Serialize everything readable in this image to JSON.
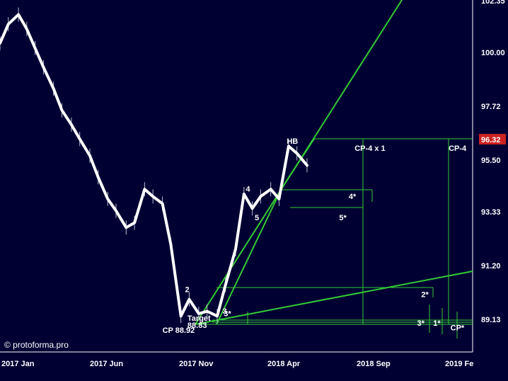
{
  "watermark": "© protoforma.pro",
  "colors": {
    "background": "#000033",
    "axis": "#ffffff",
    "price_line": "#ffffff",
    "bars": "#b8c0d0",
    "projection": "#33cc33",
    "last_price_badge": "#cc2222"
  },
  "chart_data": {
    "type": "line",
    "title": "",
    "xlabel": "",
    "ylabel": "",
    "x_ticks": [
      "2017 Jan",
      "2017 Jun",
      "2017 Nov",
      "2018 Apr",
      "2018 Sep",
      "2019 Fe"
    ],
    "y_ticks": [
      "102.35",
      "100.00",
      "97.72",
      "95.50",
      "93.33",
      "91.20",
      "89.13"
    ],
    "ylim": [
      87.7,
      102.35
    ],
    "last_price": "96.32",
    "series": [
      {
        "x": [
          "2017-01-01",
          "2017-01-15",
          "2017-02-01",
          "2017-02-15",
          "2017-03-01",
          "2017-03-15",
          "2017-04-01",
          "2017-04-15",
          "2017-05-01",
          "2017-05-15",
          "2017-06-01",
          "2017-06-15",
          "2017-07-01",
          "2017-07-15",
          "2017-08-01",
          "2017-08-15",
          "2017-09-01",
          "2017-09-15",
          "2017-10-01",
          "2017-10-15",
          "2017-11-01",
          "2017-11-15",
          "2017-12-01",
          "2017-12-15",
          "2018-01-01",
          "2018-01-15",
          "2018-02-01",
          "2018-02-15",
          "2018-03-01",
          "2018-03-15",
          "2018-04-01",
          "2018-04-15",
          "2018-05-01",
          "2018-05-15",
          "2018-06-01"
        ],
        "values": [
          100.6,
          101.4,
          101.8,
          101.2,
          100.4,
          99.6,
          98.7,
          97.8,
          97.2,
          96.6,
          95.9,
          95.0,
          94.1,
          93.6,
          92.9,
          93.1,
          94.5,
          94.2,
          93.9,
          92.2,
          89.2,
          89.9,
          89.3,
          89.4,
          89.2,
          90.5,
          92.0,
          94.3,
          93.7,
          94.2,
          94.5,
          94.1,
          96.3,
          96.0,
          95.5
        ]
      }
    ],
    "wave_labels": [
      {
        "text": "2",
        "x": "2017-11-08",
        "y": 90.2
      },
      {
        "text": "3",
        "x": "2018-01-10",
        "y": 89.3
      },
      {
        "text": "4",
        "x": "2018-02-18",
        "y": 94.4
      },
      {
        "text": "5",
        "x": "2018-03-05",
        "y": 93.2
      },
      {
        "text": "HB",
        "x": "2018-04-28",
        "y": 96.4
      }
    ],
    "level_labels": [
      {
        "text": "CP-4 x 1",
        "x": "2018-08-20",
        "y": 96.1
      },
      {
        "text": "CP-4",
        "x": "2019-01-25",
        "y": 96.1
      },
      {
        "text": "4*",
        "x": "2018-08-10",
        "y": 94.1
      },
      {
        "text": "5*",
        "x": "2018-07-25",
        "y": 93.2
      },
      {
        "text": "2*",
        "x": "2018-12-10",
        "y": 90.0
      },
      {
        "text": "3*",
        "x": "2018-01-12",
        "y": 89.2
      },
      {
        "text": "Target",
        "x": "2017-11-12",
        "y": 89.0
      },
      {
        "text": "88.83",
        "x": "2017-11-12",
        "y": 88.7
      },
      {
        "text": "CP 88.92",
        "x": "2017-10-01",
        "y": 88.5
      },
      {
        "text": "3*",
        "x": "2018-12-03",
        "y": 88.8
      },
      {
        "text": "1*",
        "x": "2018-12-30",
        "y": 88.8
      },
      {
        "text": "CP*",
        "x": "2019-01-28",
        "y": 88.6
      }
    ]
  }
}
